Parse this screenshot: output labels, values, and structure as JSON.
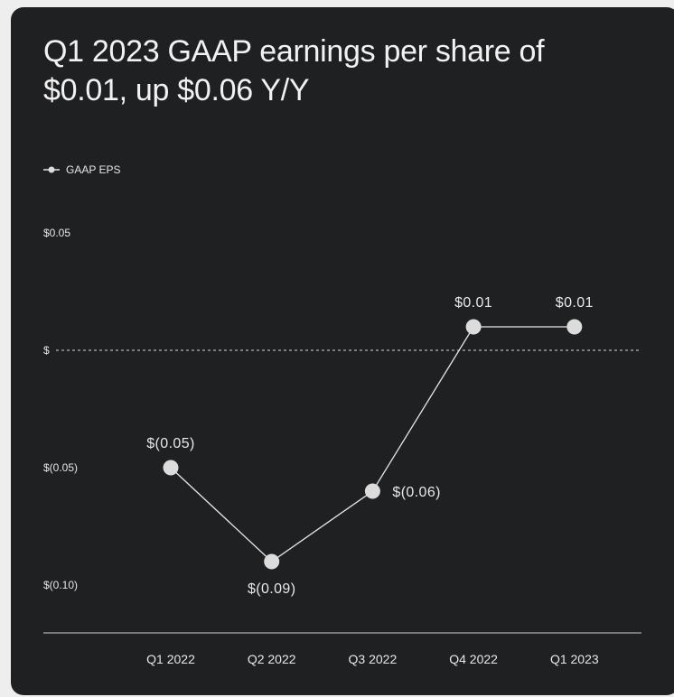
{
  "chart_data": {
    "type": "line",
    "title": "Q1 2023 GAAP earnings per share of $0.01, up $0.06 Y/Y",
    "categories": [
      "Q1 2022",
      "Q2 2022",
      "Q3 2022",
      "Q4 2022",
      "Q1 2023"
    ],
    "series": [
      {
        "name": "GAAP EPS",
        "values": [
          -0.05,
          -0.09,
          -0.06,
          0.01,
          0.01
        ],
        "labels": [
          "$(0.05)",
          "$(0.09)",
          "$(0.06)",
          "$0.01",
          "$0.01"
        ]
      }
    ],
    "y_ticks": [
      {
        "value": 0.05,
        "label": "$0.05"
      },
      {
        "value": 0,
        "label": "$"
      },
      {
        "value": -0.05,
        "label": "$(0.05)"
      },
      {
        "value": -0.1,
        "label": "$(0.10)"
      }
    ],
    "ylim": [
      -0.1,
      0.05
    ],
    "zero_line": "dotted",
    "legend_position": "top-left",
    "grid": false,
    "colors": {
      "background": "#1f2022",
      "line": "#e6e6e6",
      "marker": "#dcdcdc",
      "text": "#f2f2f2"
    }
  }
}
